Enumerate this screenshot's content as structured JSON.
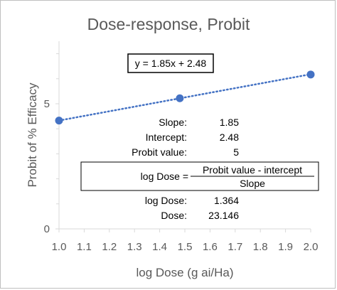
{
  "chart_data": {
    "type": "scatter",
    "title": "Dose-response, Probit",
    "xlabel": "log Dose (g ai/Ha)",
    "ylabel": "Probit of % Efficacy",
    "xlim": [
      1.0,
      2.0
    ],
    "ylim": [
      0,
      7.5
    ],
    "x_ticks": [
      "1.0",
      "1.1",
      "1.2",
      "1.3",
      "1.4",
      "1.5",
      "1.6",
      "1.7",
      "1.8",
      "1.9",
      "2.0"
    ],
    "y_ticks": [
      "0",
      "5"
    ],
    "series": [
      {
        "points": [
          {
            "x": 1.0,
            "y": 4.33
          },
          {
            "x": 1.48,
            "y": 5.22
          },
          {
            "x": 2.0,
            "y": 6.17
          }
        ]
      }
    ],
    "trendline": {
      "type": "linear",
      "slope": 1.85,
      "intercept": 2.48,
      "style": "dotted",
      "label": "y = 1.85x + 2.48"
    },
    "grid": false,
    "colors": {
      "series": "#4472c4",
      "trendline": "#4472c4",
      "axis": "#d9d9d9"
    }
  },
  "calculation": {
    "slope_label": "Slope:",
    "slope_value": "1.85",
    "intercept_label": "Intercept:",
    "intercept_value": "2.48",
    "probit_label": "Probit value:",
    "probit_value": "5",
    "formula_lhs": "log Dose =",
    "formula_numerator": "Probit value - intercept",
    "formula_denominator": "Slope",
    "logdose_label": "log Dose:",
    "logdose_value": "1.364",
    "dose_label": "Dose:",
    "dose_value": "23.146"
  }
}
